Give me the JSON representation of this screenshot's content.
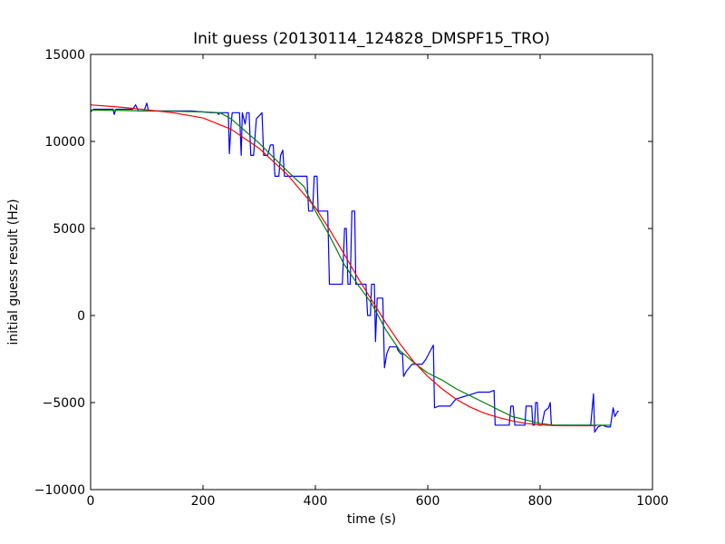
{
  "chart_data": {
    "type": "line",
    "title": "Init guess (20130114_124828_DMSPF15_TRO)",
    "xlabel": "time (s)",
    "ylabel": "initial guess result (Hz)",
    "xlim": [
      0,
      1000
    ],
    "ylim": [
      -10000,
      15000
    ],
    "xticks": [
      0,
      200,
      400,
      600,
      800,
      1000
    ],
    "yticks": [
      -10000,
      -5000,
      0,
      5000,
      10000,
      15000
    ],
    "xtick_labels": [
      "0",
      "200",
      "400",
      "600",
      "800",
      "1000"
    ],
    "ytick_labels": [
      "−10000",
      "−5000",
      "0",
      "5000",
      "10000",
      "15000"
    ],
    "grid": false,
    "legend": "none",
    "series": [
      {
        "color": "#0000ff",
        "points": [
          [
            0,
            11700
          ],
          [
            5,
            11850
          ],
          [
            30,
            11850
          ],
          [
            40,
            11850
          ],
          [
            42,
            11550
          ],
          [
            45,
            11850
          ],
          [
            75,
            11850
          ],
          [
            80,
            12100
          ],
          [
            85,
            11750
          ],
          [
            95,
            11750
          ],
          [
            100,
            12200
          ],
          [
            103,
            11750
          ],
          [
            180,
            11750
          ],
          [
            215,
            11650
          ],
          [
            225,
            11650
          ],
          [
            228,
            11550
          ],
          [
            230,
            11650
          ],
          [
            245,
            11650
          ],
          [
            247,
            9300
          ],
          [
            250,
            11000
          ],
          [
            252,
            11650
          ],
          [
            260,
            11650
          ],
          [
            265,
            11650
          ],
          [
            268,
            9200
          ],
          [
            270,
            11650
          ],
          [
            275,
            11000
          ],
          [
            278,
            11650
          ],
          [
            282,
            11650
          ],
          [
            285,
            9200
          ],
          [
            290,
            9200
          ],
          [
            295,
            11300
          ],
          [
            305,
            11650
          ],
          [
            308,
            9200
          ],
          [
            315,
            9200
          ],
          [
            320,
            9800
          ],
          [
            325,
            9800
          ],
          [
            328,
            8000
          ],
          [
            335,
            8000
          ],
          [
            338,
            9200
          ],
          [
            342,
            9500
          ],
          [
            345,
            8000
          ],
          [
            375,
            8000
          ],
          [
            380,
            8000
          ],
          [
            385,
            8000
          ],
          [
            388,
            6000
          ],
          [
            395,
            6000
          ],
          [
            398,
            8000
          ],
          [
            403,
            8000
          ],
          [
            405,
            6000
          ],
          [
            410,
            6000
          ],
          [
            415,
            6000
          ],
          [
            422,
            6000
          ],
          [
            425,
            1800
          ],
          [
            445,
            1800
          ],
          [
            448,
            1800
          ],
          [
            452,
            5000
          ],
          [
            455,
            5000
          ],
          [
            458,
            1800
          ],
          [
            462,
            1800
          ],
          [
            465,
            6000
          ],
          [
            470,
            6000
          ],
          [
            472,
            1800
          ],
          [
            490,
            1800
          ],
          [
            493,
            0
          ],
          [
            498,
            0
          ],
          [
            500,
            1800
          ],
          [
            505,
            1800
          ],
          [
            507,
            -1500
          ],
          [
            510,
            1000
          ],
          [
            515,
            1000
          ],
          [
            520,
            1000
          ],
          [
            523,
            -3000
          ],
          [
            527,
            -2200
          ],
          [
            532,
            -1800
          ],
          [
            538,
            -1800
          ],
          [
            545,
            -1800
          ],
          [
            547,
            -2000
          ],
          [
            552,
            -2200
          ],
          [
            555,
            -2200
          ],
          [
            557,
            -3500
          ],
          [
            562,
            -3200
          ],
          [
            567,
            -3000
          ],
          [
            572,
            -2800
          ],
          [
            580,
            -2800
          ],
          [
            590,
            -2800
          ],
          [
            597,
            -2500
          ],
          [
            605,
            -2000
          ],
          [
            610,
            -1700
          ],
          [
            612,
            -5300
          ],
          [
            620,
            -5200
          ],
          [
            630,
            -5200
          ],
          [
            640,
            -5200
          ],
          [
            650,
            -4800
          ],
          [
            660,
            -4700
          ],
          [
            670,
            -4600
          ],
          [
            680,
            -4500
          ],
          [
            690,
            -4400
          ],
          [
            700,
            -4400
          ],
          [
            710,
            -4400
          ],
          [
            718,
            -4300
          ],
          [
            720,
            -6300
          ],
          [
            730,
            -6300
          ],
          [
            745,
            -6300
          ],
          [
            748,
            -5200
          ],
          [
            752,
            -5200
          ],
          [
            755,
            -6300
          ],
          [
            770,
            -6300
          ],
          [
            773,
            -6300
          ],
          [
            775,
            -5200
          ],
          [
            780,
            -5200
          ],
          [
            785,
            -5200
          ],
          [
            787,
            -6300
          ],
          [
            790,
            -6300
          ],
          [
            792,
            -5000
          ],
          [
            795,
            -5000
          ],
          [
            797,
            -6300
          ],
          [
            803,
            -6300
          ],
          [
            808,
            -5500
          ],
          [
            815,
            -5300
          ],
          [
            818,
            -5000
          ],
          [
            820,
            -6300
          ],
          [
            830,
            -6300
          ],
          [
            840,
            -6300
          ],
          [
            850,
            -6300
          ],
          [
            870,
            -6300
          ],
          [
            880,
            -6300
          ],
          [
            890,
            -6300
          ],
          [
            895,
            -4500
          ],
          [
            897,
            -6700
          ],
          [
            903,
            -6400
          ],
          [
            910,
            -6300
          ],
          [
            920,
            -6400
          ],
          [
            925,
            -6400
          ],
          [
            930,
            -5300
          ],
          [
            933,
            -5800
          ],
          [
            938,
            -5500
          ],
          [
            940,
            -5500
          ]
        ]
      },
      {
        "color": "#008000",
        "points": [
          [
            0,
            11800
          ],
          [
            50,
            11780
          ],
          [
            100,
            11750
          ],
          [
            150,
            11730
          ],
          [
            200,
            11700
          ],
          [
            230,
            11650
          ],
          [
            250,
            11300
          ],
          [
            275,
            10600
          ],
          [
            300,
            9900
          ],
          [
            325,
            9100
          ],
          [
            350,
            8300
          ],
          [
            380,
            7400
          ],
          [
            400,
            6000
          ],
          [
            425,
            4600
          ],
          [
            450,
            3000
          ],
          [
            475,
            1800
          ],
          [
            500,
            700
          ],
          [
            525,
            -800
          ],
          [
            550,
            -2000
          ],
          [
            575,
            -2700
          ],
          [
            600,
            -3300
          ],
          [
            625,
            -3700
          ],
          [
            650,
            -4200
          ],
          [
            675,
            -4600
          ],
          [
            700,
            -5000
          ],
          [
            725,
            -5400
          ],
          [
            750,
            -5800
          ],
          [
            775,
            -6000
          ],
          [
            800,
            -6200
          ],
          [
            825,
            -6300
          ],
          [
            850,
            -6300
          ],
          [
            875,
            -6300
          ],
          [
            900,
            -6300
          ],
          [
            925,
            -6300
          ]
        ]
      },
      {
        "color": "#ff0000",
        "points": [
          [
            0,
            12100
          ],
          [
            50,
            11980
          ],
          [
            100,
            11820
          ],
          [
            150,
            11630
          ],
          [
            200,
            11350
          ],
          [
            250,
            10700
          ],
          [
            300,
            9600
          ],
          [
            350,
            8100
          ],
          [
            400,
            6200
          ],
          [
            425,
            4950
          ],
          [
            450,
            3600
          ],
          [
            475,
            2200
          ],
          [
            500,
            900
          ],
          [
            525,
            -400
          ],
          [
            550,
            -1600
          ],
          [
            575,
            -2650
          ],
          [
            600,
            -3500
          ],
          [
            625,
            -4200
          ],
          [
            650,
            -4800
          ],
          [
            675,
            -5250
          ],
          [
            700,
            -5600
          ],
          [
            725,
            -5850
          ],
          [
            750,
            -6050
          ],
          [
            775,
            -6200
          ],
          [
            800,
            -6280
          ],
          [
            825,
            -6320
          ],
          [
            850,
            -6330
          ],
          [
            875,
            -6330
          ],
          [
            900,
            -6330
          ]
        ]
      }
    ]
  }
}
